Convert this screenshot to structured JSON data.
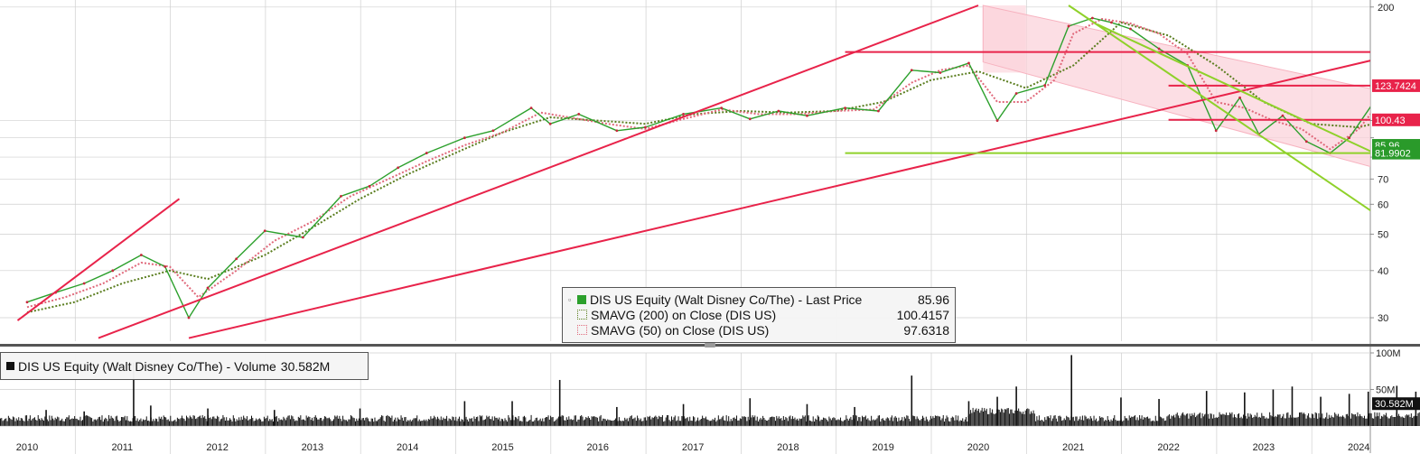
{
  "chart_data": {
    "type": "line",
    "security": "DIS US Equity (Walt Disney Co/The)",
    "x_axis": {
      "years": [
        "2010",
        "2011",
        "2012",
        "2013",
        "2014",
        "2015",
        "2016",
        "2017",
        "2018",
        "2019",
        "2020",
        "2021",
        "2022",
        "2023",
        "2024"
      ]
    },
    "price_panel": {
      "scale": "log",
      "ylim": [
        26,
        202
      ],
      "y_ticks": [
        30,
        40,
        50,
        60,
        70,
        80,
        90,
        100,
        200
      ],
      "y_tick_labels": [
        "30",
        "40",
        "50",
        "60",
        "70",
        "",
        "",
        "",
        "200"
      ],
      "series": [
        {
          "name": "Last Price",
          "legend_label": "DIS US Equity (Walt Disney Co/The) - Last Price",
          "legend_value": "85.96",
          "color": "#2ca02c",
          "x": [
            2010.0,
            2010.3,
            2010.6,
            2010.9,
            2011.2,
            2011.45,
            2011.7,
            2011.9,
            2012.2,
            2012.5,
            2012.9,
            2013.3,
            2013.6,
            2013.9,
            2014.2,
            2014.6,
            2014.9,
            2015.3,
            2015.5,
            2015.8,
            2016.2,
            2016.5,
            2016.9,
            2017.3,
            2017.6,
            2017.9,
            2018.2,
            2018.6,
            2018.95,
            2019.3,
            2019.6,
            2019.9,
            2020.2,
            2020.4,
            2020.7,
            2020.95,
            2021.2,
            2021.4,
            2021.6,
            2021.9,
            2022.2,
            2022.5,
            2022.75,
            2022.95,
            2023.2,
            2023.45,
            2023.7,
            2023.9,
            2024.25,
            2024.5,
            2024.7
          ],
          "y": [
            33,
            35,
            37,
            40,
            44,
            41,
            30,
            36,
            43,
            51,
            49,
            63,
            67,
            75,
            82,
            90,
            94,
            108,
            98,
            104,
            94,
            96,
            104,
            108,
            101,
            106,
            103,
            108,
            106,
            136,
            134,
            142,
            100,
            118,
            124,
            178,
            187,
            182,
            175,
            155,
            140,
            94,
            115,
            92,
            103,
            88,
            82,
            90,
            121,
            100,
            85.96
          ]
        },
        {
          "name": "SMAVG (200) on Close (DIS US)",
          "legend_label": "SMAVG (200)  on Close (DIS US)",
          "legend_value": "100.4157",
          "color": "#5a7d1e",
          "x": [
            2010.0,
            2010.5,
            2011.0,
            2011.5,
            2011.9,
            2012.5,
            2013.0,
            2013.5,
            2014.0,
            2014.5,
            2015.0,
            2015.5,
            2016.0,
            2016.5,
            2017.0,
            2017.5,
            2018.0,
            2018.5,
            2019.0,
            2019.5,
            2020.0,
            2020.5,
            2021.0,
            2021.5,
            2022.0,
            2022.5,
            2023.0,
            2023.5,
            2024.0,
            2024.5,
            2024.7
          ],
          "y": [
            31,
            33,
            37,
            40,
            38,
            44,
            52,
            62,
            72,
            82,
            93,
            102,
            100,
            98,
            104,
            106,
            105,
            106,
            112,
            128,
            135,
            122,
            140,
            182,
            168,
            140,
            112,
            98,
            96,
            103,
            100.42
          ]
        },
        {
          "name": "SMAVG (50) on Close (DIS US)",
          "legend_label": "SMAVG (50)  on Close (DIS US)",
          "legend_value": "97.6318",
          "color": "#e0687a",
          "x": [
            2010.0,
            2010.4,
            2010.8,
            2011.2,
            2011.5,
            2011.8,
            2012.2,
            2012.6,
            2013.0,
            2013.4,
            2013.8,
            2014.2,
            2014.6,
            2015.0,
            2015.4,
            2015.7,
            2016.1,
            2016.5,
            2016.9,
            2017.3,
            2017.7,
            2018.1,
            2018.5,
            2018.9,
            2019.3,
            2019.6,
            2019.9,
            2020.2,
            2020.5,
            2020.8,
            2021.0,
            2021.3,
            2021.6,
            2021.9,
            2022.2,
            2022.5,
            2022.8,
            2023.1,
            2023.4,
            2023.7,
            2024.0,
            2024.3,
            2024.5,
            2024.7
          ],
          "y": [
            32,
            34,
            37,
            42,
            41,
            34,
            40,
            48,
            54,
            63,
            70,
            78,
            86,
            93,
            105,
            102,
            98,
            95,
            101,
            107,
            104,
            104,
            106,
            107,
            126,
            136,
            140,
            112,
            112,
            128,
            170,
            186,
            181,
            170,
            150,
            112,
            108,
            100,
            95,
            84,
            95,
            118,
            108,
            97.63
          ]
        }
      ],
      "price_labels": [
        {
          "text": "123.7424",
          "value": 123.7424,
          "color": "#e8234a"
        },
        {
          "text": "100.43",
          "value": 100.43,
          "color": "#e8234a"
        },
        {
          "text": "85.96",
          "value": 85.96,
          "color": "#2a9a2a"
        },
        {
          "text": "81.9902",
          "value": 81.9902,
          "color": "#2a9a2a"
        }
      ],
      "trendlines": [
        {
          "color": "#e8234a",
          "x": [
            2009.9,
            2011.6
          ],
          "y": [
            29.5,
            62
          ]
        },
        {
          "color": "#e8234a",
          "x": [
            2010.75,
            2020.0
          ],
          "y": [
            26.5,
            202
          ]
        },
        {
          "color": "#e8234a",
          "x": [
            2011.7,
            2024.7
          ],
          "y": [
            26.5,
            156
          ]
        },
        {
          "color": "#e8234a",
          "x": [
            2018.6,
            2024.7
          ],
          "y": [
            152,
            152
          ]
        },
        {
          "color": "#e8234a",
          "x": [
            2022.0,
            2024.7
          ],
          "y": [
            123.7424,
            123.7424
          ]
        },
        {
          "color": "#e8234a",
          "x": [
            2022.0,
            2024.7
          ],
          "y": [
            100.43,
            100.43
          ]
        },
        {
          "color": "#8fd12a",
          "x": [
            2018.6,
            2024.7
          ],
          "y": [
            81.9902,
            81.9902
          ]
        },
        {
          "color": "#8fd12a",
          "x": [
            2020.95,
            2024.7
          ],
          "y": [
            202,
            46
          ]
        },
        {
          "color": "#8fd12a",
          "x": [
            2021.25,
            2024.7
          ],
          "y": [
            180,
            71
          ]
        }
      ],
      "channel": {
        "color": "#f7b2bf",
        "x_start": 2020.05,
        "x_end": 2024.7,
        "upper": [
          202,
          113
        ],
        "lower": [
          143,
          69
        ],
        "shade_x": [
          2020.05,
          2020.5
        ],
        "shade_y": [
          134,
          202
        ]
      }
    },
    "volume_panel": {
      "series_name": "Volume",
      "legend_label": "DIS US Equity (Walt Disney Co/The) - Volume",
      "legend_value": "30.582M",
      "ylim": [
        0,
        100
      ],
      "y_ticks": [
        50,
        100
      ],
      "y_tick_labels": [
        "50M",
        "100M"
      ],
      "last_value_label": "30.582M",
      "spikes": [
        {
          "x": 2010.2,
          "y": 22
        },
        {
          "x": 2010.6,
          "y": 20
        },
        {
          "x": 2011.12,
          "y": 86
        },
        {
          "x": 2011.3,
          "y": 28
        },
        {
          "x": 2011.9,
          "y": 24
        },
        {
          "x": 2012.6,
          "y": 22
        },
        {
          "x": 2013.5,
          "y": 24
        },
        {
          "x": 2014.6,
          "y": 34
        },
        {
          "x": 2015.1,
          "y": 34
        },
        {
          "x": 2015.6,
          "y": 63
        },
        {
          "x": 2016.2,
          "y": 26
        },
        {
          "x": 2016.9,
          "y": 30
        },
        {
          "x": 2017.6,
          "y": 38
        },
        {
          "x": 2018.2,
          "y": 30
        },
        {
          "x": 2018.7,
          "y": 26
        },
        {
          "x": 2019.3,
          "y": 69
        },
        {
          "x": 2019.9,
          "y": 34
        },
        {
          "x": 2020.2,
          "y": 40
        },
        {
          "x": 2020.4,
          "y": 54
        },
        {
          "x": 2020.98,
          "y": 97
        },
        {
          "x": 2021.5,
          "y": 39
        },
        {
          "x": 2021.9,
          "y": 37
        },
        {
          "x": 2022.4,
          "y": 48
        },
        {
          "x": 2022.8,
          "y": 46
        },
        {
          "x": 2023.1,
          "y": 50
        },
        {
          "x": 2023.3,
          "y": 54
        },
        {
          "x": 2023.6,
          "y": 40
        },
        {
          "x": 2023.9,
          "y": 44
        },
        {
          "x": 2024.1,
          "y": 47
        },
        {
          "x": 2024.4,
          "y": 55
        },
        {
          "x": 2024.6,
          "y": 47
        },
        {
          "x": 2024.7,
          "y": 30.582
        }
      ]
    }
  }
}
